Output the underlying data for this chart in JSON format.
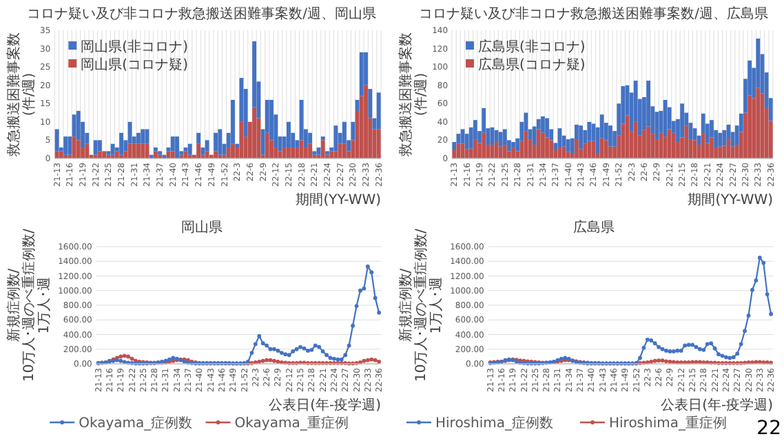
{
  "chart_data": [
    {
      "type": "bar",
      "stacked": true,
      "title": "コロナ疑い及び非コロナ救急搬送困難事案数/週、岡山県",
      "xlabel": "期間(YY-WW)",
      "ylabel": "救急搬送困難事案数(件/週)",
      "categories": [
        "21-13",
        null,
        null,
        "21-16",
        null,
        null,
        "21-19",
        null,
        null,
        "21-22",
        null,
        null,
        "21-25",
        null,
        null,
        "21-28",
        null,
        null,
        "21-31",
        null,
        null,
        "21-34",
        null,
        null,
        "21-37",
        null,
        null,
        "21-40",
        null,
        null,
        "21-43",
        null,
        null,
        "21-46",
        null,
        null,
        "21-49",
        null,
        null,
        "21-52",
        null,
        null,
        "22-3",
        null,
        null,
        "22-6",
        null,
        null,
        "22-9",
        null,
        null,
        "22-12",
        null,
        null,
        "22-15",
        null,
        null,
        "22-18",
        null,
        null,
        "22-21",
        null,
        null,
        "22-24",
        null,
        null,
        "22-27",
        null,
        null,
        "22-30",
        null,
        null,
        "22-33",
        null,
        null,
        "22-36"
      ],
      "series": [
        {
          "name": "岡山県(コロナ疑)",
          "color": "#c0504d",
          "values": [
            2,
            2,
            1,
            1,
            6,
            5,
            3,
            4,
            1,
            1,
            2,
            2,
            1,
            1,
            2,
            1,
            2,
            4,
            4,
            4,
            4,
            4,
            0,
            2,
            1,
            0,
            2,
            2,
            0,
            1,
            2,
            1,
            1,
            4,
            1,
            2,
            1,
            2,
            1,
            1,
            3,
            4,
            3,
            10,
            6,
            10,
            14,
            11,
            1,
            7,
            5,
            3,
            2,
            3,
            3,
            3,
            3,
            5,
            3,
            4,
            1,
            1,
            5,
            1,
            2,
            2,
            4,
            4,
            2,
            5,
            13,
            17,
            20,
            11,
            8,
            8
          ]
        },
        {
          "name": "岡山県(非コロナ)",
          "color": "#4472c4",
          "values": [
            6,
            1,
            5,
            5,
            6,
            8,
            7,
            3,
            0,
            4,
            3,
            0,
            1,
            3,
            1,
            6,
            3,
            6,
            2,
            3,
            4,
            4,
            1,
            1,
            1,
            1,
            1,
            4,
            6,
            1,
            1,
            3,
            0,
            3,
            2,
            3,
            0,
            5,
            7,
            3,
            4,
            12,
            1,
            12,
            13,
            0,
            18,
            10,
            7,
            9,
            11,
            9,
            4,
            3,
            7,
            4,
            2,
            11,
            5,
            3,
            1,
            2,
            1,
            1,
            1,
            7,
            3,
            6,
            3,
            5,
            3,
            12,
            9,
            8,
            3,
            10
          ]
        }
      ],
      "ylim": [
        0,
        35
      ],
      "yticks": [
        0,
        5,
        10,
        15,
        20,
        25,
        30,
        35
      ],
      "grid": "x",
      "legend": "top left"
    },
    {
      "type": "bar",
      "stacked": true,
      "title": "コロナ疑い及び非コロナ救急搬送困難事案数/週、広島県",
      "xlabel": "期間(YY-WW)",
      "ylabel": "救急搬送困難事案数(件/週)",
      "categories": [
        "21-13",
        null,
        null,
        "21-16",
        null,
        null,
        "21-19",
        null,
        null,
        "21-22",
        null,
        null,
        "21-25",
        null,
        null,
        "21-28",
        null,
        null,
        "21-31",
        null,
        null,
        "21-34",
        null,
        null,
        "21-37",
        null,
        null,
        "21-40",
        null,
        null,
        "21-43",
        null,
        null,
        "21-46",
        null,
        null,
        "21-49",
        null,
        null,
        "21-52",
        null,
        null,
        "22-3",
        null,
        null,
        "22-6",
        null,
        null,
        "22-9",
        null,
        null,
        "22-12",
        null,
        null,
        "22-15",
        null,
        null,
        "22-18",
        null,
        null,
        "22-21",
        null,
        null,
        "22-24",
        null,
        null,
        "22-27",
        null,
        null,
        "22-30",
        null,
        null,
        "22-33",
        null,
        null,
        "22-36"
      ],
      "series": [
        {
          "name": "広島県(コロナ疑)",
          "color": "#c0504d",
          "values": [
            9,
            16,
            16,
            10,
            11,
            21,
            17,
            28,
            15,
            15,
            18,
            13,
            15,
            8,
            12,
            8,
            19,
            30,
            21,
            15,
            32,
            28,
            23,
            20,
            9,
            12,
            13,
            7,
            6,
            21,
            10,
            16,
            19,
            19,
            6,
            22,
            20,
            13,
            13,
            25,
            38,
            47,
            30,
            40,
            25,
            31,
            35,
            27,
            21,
            28,
            24,
            32,
            28,
            18,
            23,
            36,
            21,
            20,
            15,
            27,
            17,
            23,
            12,
            13,
            14,
            21,
            13,
            15,
            29,
            50,
            69,
            66,
            77,
            71,
            55,
            41
          ]
        },
        {
          "name": "広島県(非コロナ)",
          "color": "#4472c4",
          "values": [
            9,
            11,
            16,
            17,
            23,
            21,
            13,
            27,
            18,
            19,
            13,
            16,
            17,
            12,
            6,
            14,
            21,
            20,
            11,
            20,
            11,
            18,
            21,
            12,
            8,
            21,
            12,
            14,
            16,
            16,
            26,
            15,
            21,
            19,
            28,
            26,
            19,
            23,
            17,
            35,
            41,
            33,
            42,
            45,
            40,
            36,
            50,
            30,
            30,
            24,
            40,
            24,
            13,
            25,
            37,
            14,
            18,
            13,
            10,
            22,
            21,
            19,
            19,
            15,
            17,
            16,
            16,
            21,
            20,
            37,
            38,
            33,
            54,
            43,
            39,
            25
          ]
        }
      ],
      "ylim": [
        0,
        140
      ],
      "yticks": [
        0,
        20,
        40,
        60,
        80,
        100,
        120,
        140
      ],
      "grid": "x",
      "legend": "top left"
    },
    {
      "type": "line",
      "title": "岡山県",
      "xlabel": "公表日(年-疫学週)",
      "ylabel": "新規症例数/10万人･週のべ重症例数/1万人･週",
      "categories": [
        "21-13",
        null,
        null,
        "21-16",
        null,
        null,
        "21-19",
        null,
        null,
        "21-22",
        null,
        null,
        "21-25",
        null,
        null,
        "21-28",
        null,
        null,
        "21-31",
        null,
        null,
        "21-34",
        null,
        null,
        "21-37",
        null,
        null,
        "21-40",
        null,
        null,
        "21-43",
        null,
        null,
        "21-46",
        null,
        null,
        "21-49",
        null,
        null,
        "21-52",
        null,
        null,
        "22-3",
        null,
        null,
        "22-6",
        null,
        null,
        "22-9",
        null,
        null,
        "22-12",
        null,
        null,
        "22-15",
        null,
        null,
        "22-18",
        null,
        null,
        "22-21",
        null,
        null,
        "22-24",
        null,
        null,
        "22-27",
        null,
        null,
        "22-30",
        null,
        null,
        "22-33",
        null,
        null,
        "22-36"
      ],
      "series": [
        {
          "name": "Okayama_症例数",
          "color": "#4472c4",
          "values": [
            10,
            15,
            20,
            30,
            40,
            50,
            40,
            25,
            15,
            10,
            5,
            5,
            5,
            5,
            10,
            10,
            20,
            30,
            40,
            60,
            80,
            70,
            50,
            30,
            15,
            10,
            5,
            5,
            5,
            5,
            5,
            5,
            5,
            5,
            5,
            5,
            5,
            5,
            5,
            10,
            30,
            150,
            270,
            380,
            280,
            250,
            200,
            200,
            180,
            150,
            130,
            120,
            170,
            200,
            230,
            210,
            180,
            190,
            250,
            230,
            170,
            120,
            80,
            70,
            60,
            60,
            120,
            250,
            520,
            790,
            1000,
            1030,
            1330,
            1250,
            900,
            700
          ]
        },
        {
          "name": "Okayama_重症例",
          "color": "#c0504d",
          "values": [
            10,
            15,
            20,
            40,
            60,
            80,
            100,
            110,
            100,
            70,
            40,
            30,
            25,
            20,
            15,
            15,
            15,
            15,
            20,
            30,
            40,
            50,
            60,
            60,
            50,
            30,
            20,
            10,
            10,
            10,
            10,
            10,
            10,
            10,
            10,
            10,
            5,
            5,
            5,
            5,
            5,
            10,
            20,
            30,
            40,
            50,
            50,
            40,
            30,
            20,
            15,
            10,
            10,
            10,
            15,
            15,
            10,
            10,
            10,
            10,
            10,
            10,
            10,
            10,
            10,
            10,
            10,
            5,
            5,
            10,
            20,
            40,
            50,
            60,
            50,
            30
          ]
        }
      ],
      "ylim": [
        0,
        1600
      ],
      "yticks": [
        {
          "value": 0,
          "label": "0.00"
        },
        {
          "value": 200,
          "label": "200.00"
        },
        {
          "value": 400,
          "label": "400.00"
        },
        {
          "value": 600,
          "label": "600.00"
        },
        {
          "value": 800,
          "label": "800.00"
        },
        {
          "value": 1000,
          "label": "1000.00"
        },
        {
          "value": 1200,
          "label": "1200.00"
        },
        {
          "value": 1400,
          "label": "1400.00"
        },
        {
          "value": 1600,
          "label": "1600.00"
        }
      ],
      "grid": "y",
      "legend": "bottom",
      "marker": "circle"
    },
    {
      "type": "line",
      "title": "広島県",
      "xlabel": "公表日(年-疫学週)",
      "ylabel": "新規症例数/10万人･週のべ重症例数/1万人･週",
      "categories": [
        "21-13",
        null,
        null,
        "21-16",
        null,
        null,
        "21-19",
        null,
        null,
        "21-22",
        null,
        null,
        "21-25",
        null,
        null,
        "21-28",
        null,
        null,
        "21-31",
        null,
        null,
        "21-34",
        null,
        null,
        "21-37",
        null,
        null,
        "21-40",
        null,
        null,
        "21-43",
        null,
        null,
        "21-46",
        null,
        null,
        "21-49",
        null,
        null,
        "21-52",
        null,
        null,
        "22-3",
        null,
        null,
        "22-6",
        null,
        null,
        "22-9",
        null,
        null,
        "22-12",
        null,
        null,
        "22-15",
        null,
        null,
        "22-18",
        null,
        null,
        "22-21",
        null,
        null,
        "22-24",
        null,
        null,
        "22-27",
        null,
        null,
        "22-30",
        null,
        null,
        "22-33",
        null,
        null,
        "22-36"
      ],
      "series": [
        {
          "name": "Hiroshima_症例数",
          "color": "#4472c4",
          "values": [
            10,
            15,
            20,
            30,
            50,
            60,
            50,
            30,
            15,
            10,
            5,
            5,
            5,
            5,
            10,
            15,
            20,
            30,
            50,
            70,
            80,
            70,
            40,
            25,
            15,
            10,
            5,
            5,
            5,
            5,
            5,
            5,
            5,
            5,
            5,
            5,
            5,
            5,
            5,
            5,
            80,
            220,
            330,
            320,
            280,
            230,
            200,
            180,
            170,
            170,
            180,
            180,
            250,
            260,
            260,
            230,
            200,
            190,
            270,
            280,
            210,
            130,
            110,
            90,
            80,
            90,
            140,
            270,
            450,
            660,
            1010,
            1140,
            1450,
            1380,
            950,
            680
          ]
        },
        {
          "name": "Hiroshima_重症例",
          "color": "#c0504d",
          "values": [
            20,
            25,
            30,
            30,
            40,
            50,
            60,
            55,
            45,
            40,
            35,
            30,
            25,
            20,
            15,
            15,
            20,
            25,
            30,
            40,
            50,
            50,
            45,
            35,
            25,
            20,
            15,
            10,
            10,
            10,
            5,
            5,
            5,
            5,
            5,
            5,
            5,
            5,
            5,
            10,
            10,
            15,
            20,
            30,
            40,
            45,
            45,
            35,
            30,
            25,
            20,
            20,
            20,
            20,
            25,
            25,
            25,
            20,
            20,
            15,
            15,
            10,
            10,
            10,
            10,
            10,
            10,
            10,
            15,
            20,
            20,
            25,
            25,
            20,
            20,
            15
          ]
        }
      ],
      "ylim": [
        0,
        1600
      ],
      "yticks": [
        {
          "value": 0,
          "label": "0.00"
        },
        {
          "value": 200,
          "label": "200.00"
        },
        {
          "value": 400,
          "label": "400.00"
        },
        {
          "value": 600,
          "label": "600.00"
        },
        {
          "value": 800,
          "label": "800.00"
        },
        {
          "value": 1000,
          "label": "1000.00"
        },
        {
          "value": 1200,
          "label": "1200.00"
        },
        {
          "value": 1400,
          "label": "1400.00"
        },
        {
          "value": 1600,
          "label": "1600.00"
        }
      ],
      "grid": "y",
      "legend": "bottom",
      "marker": "circle",
      "annotations": [
        "22"
      ]
    }
  ]
}
